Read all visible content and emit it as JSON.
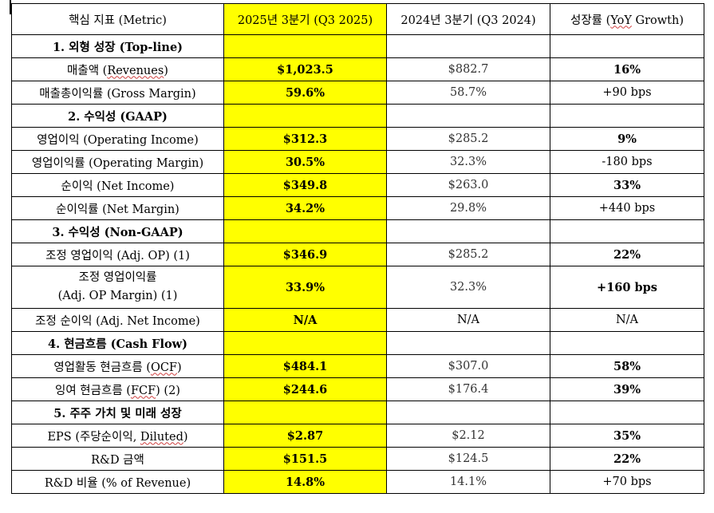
{
  "header": {
    "metric": "핵심 지표 (Metric)",
    "q3_2025": "2025년 3분기 (Q3 2025)",
    "q3_2024": "2024년 3분기 (Q3 2024)",
    "yoy": "성장률 (YoY Growth)"
  },
  "sections": [
    {
      "title": "1. 외형 성장 (Top-line)",
      "rows": [
        {
          "label": "매출액 (Revenues)",
          "q3_2025": "$1,023.5",
          "q3_2024": "$882.7",
          "yoy": "16%",
          "yoy_bold": true
        },
        {
          "label": "매출총이익률 (Gross Margin)",
          "q3_2025": "59.6%",
          "q3_2024": "58.7%",
          "yoy": "+90 bps",
          "yoy_bold": false
        }
      ]
    },
    {
      "title": "2. 수익성 (GAAP)",
      "rows": [
        {
          "label": "영업이익 (Operating Income)",
          "q3_2025": "$312.3",
          "q3_2024": "$285.2",
          "yoy": "9%",
          "yoy_bold": true
        },
        {
          "label": "영업이익률 (Operating Margin)",
          "q3_2025": "30.5%",
          "q3_2024": "32.3%",
          "yoy": "-180 bps",
          "yoy_bold": false
        },
        {
          "label": "순이익 (Net Income)",
          "q3_2025": "$349.8",
          "q3_2024": "$263.0",
          "yoy": "33%",
          "yoy_bold": true
        },
        {
          "label": "순이익률 (Net Margin)",
          "q3_2025": "34.2%",
          "q3_2024": "29.8%",
          "yoy": "+440 bps",
          "yoy_bold": false
        }
      ]
    },
    {
      "title": "3. 수익성 (Non-GAAP)",
      "rows": [
        {
          "label": "조정 영업이익 (Adj. OP) (1)",
          "q3_2025": "$346.9",
          "q3_2024": "$285.2",
          "yoy": "22%",
          "yoy_bold": true
        },
        {
          "label_line1": "조정 영업이익률",
          "label_line2": "(Adj. OP Margin) (1)",
          "q3_2025": "33.9%",
          "q3_2024": "32.3%",
          "yoy": "+160 bps",
          "yoy_bold": true
        },
        {
          "label": "조정 순이익 (Adj. Net Income)",
          "q3_2025": "N/A",
          "q3_2024": "N/A",
          "yoy": "N/A",
          "yoy_bold": false
        }
      ]
    },
    {
      "title": "4. 현금흐름 (Cash Flow)",
      "rows": [
        {
          "label": "영업활동 현금흐름 (OCF)",
          "q3_2025": "$484.1",
          "q3_2024": "$307.0",
          "yoy": "58%",
          "yoy_bold": true
        },
        {
          "label": "잉여 현금흐름 (FCF) (2)",
          "q3_2025": "$244.6",
          "q3_2024": "$176.4",
          "yoy": "39%",
          "yoy_bold": true
        }
      ]
    },
    {
      "title": "5. 주주 가치 및 미래 성장",
      "rows": [
        {
          "label": "EPS (주당순이익, Diluted)",
          "q3_2025": "$2.87",
          "q3_2024": "$2.12",
          "yoy": "35%",
          "yoy_bold": true
        },
        {
          "label": "R&D 금액",
          "q3_2025": "$151.5",
          "q3_2024": "$124.5",
          "yoy": "22%",
          "yoy_bold": true
        },
        {
          "label": "R&D 비율 (% of Revenue)",
          "q3_2025": "14.8%",
          "q3_2024": "14.1%",
          "yoy": "+70 bps",
          "yoy_bold": false
        }
      ]
    }
  ],
  "colors": {
    "highlight": "#ffff00",
    "border": "#000000",
    "spell_underline": "#d04040"
  }
}
